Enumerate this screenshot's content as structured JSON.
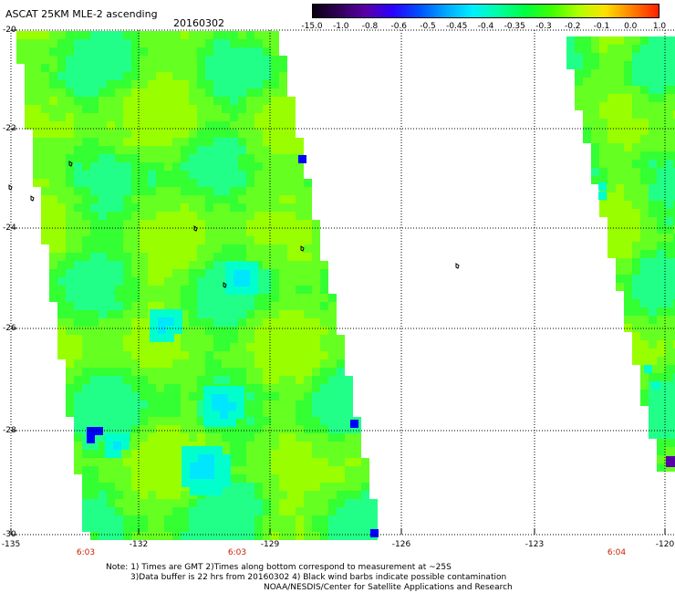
{
  "header": {
    "title": "ASCAT 25KM MLE-2 ascending",
    "date": "20160302"
  },
  "colorbar": {
    "labels": [
      "-15.0",
      "-1.0",
      "-0.8",
      "-0.6",
      "-0.5",
      "-0.45",
      "-0.4",
      "-0.35",
      "-0.3",
      "-0.2",
      "-0.1",
      "0.0",
      "1.0"
    ],
    "colors": [
      "#0a0010",
      "#32005a",
      "#5a00a8",
      "#2a00ff",
      "#0050ff",
      "#00a8ff",
      "#00f0ff",
      "#00ffa0",
      "#00ff40",
      "#40ff00",
      "#b0ff00",
      "#ffe000",
      "#ff8000",
      "#ff2000"
    ]
  },
  "axes": {
    "lat_labels": [
      "-20",
      "-22",
      "-24",
      "-26",
      "-28",
      "-30"
    ],
    "lon_labels": [
      "-135",
      "-132",
      "-129",
      "-126",
      "-123",
      "-120"
    ]
  },
  "times": [
    "6:03",
    "6:03",
    "6:04"
  ],
  "notes": {
    "line1": "Note: 1) Times are GMT 2)Times along bottom correspond to measurement at ~25S",
    "line2": "3)Data buffer is 22 hrs from 20160302 4) Black wind barbs indicate possible contamination",
    "line3": "NOAA/NESDIS/Center for Satellite Applications and Research"
  },
  "map_colors": {
    "lime": "#99ff00",
    "green": "#33ff33",
    "cyan": "#00ffcc",
    "blue": "#0000ff"
  }
}
